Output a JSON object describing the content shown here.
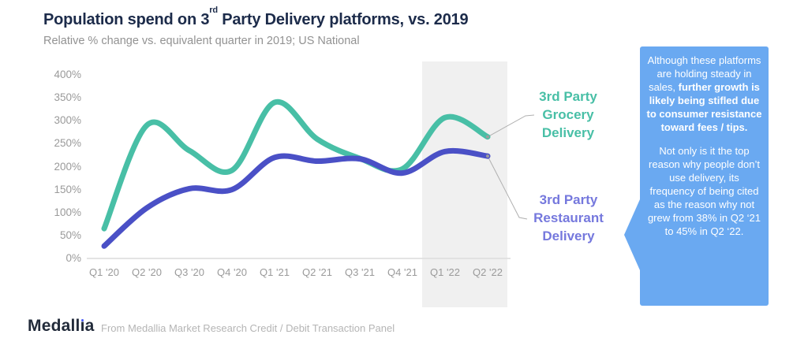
{
  "header": {
    "title_pre": "Population spend on 3",
    "title_sup": "rd",
    "title_post": " Party Delivery platforms, vs. 2019",
    "subtitle": "Relative % change vs. equivalent quarter in 2019; US National"
  },
  "chart_data": {
    "type": "line",
    "categories": [
      "Q1 '20",
      "Q2 '20",
      "Q3 '20",
      "Q4 '20",
      "Q1 '21",
      "Q2 '21",
      "Q3 '21",
      "Q4 '21",
      "Q1 '22",
      "Q2 '22"
    ],
    "series": [
      {
        "name": "3rd Party Grocery Delivery",
        "color": "#48BFA6",
        "values": [
          65,
          290,
          235,
          192,
          340,
          260,
          218,
          195,
          307,
          265
        ]
      },
      {
        "name": "3rd Party Restaurant Delivery",
        "color": "#4A50C6",
        "values": [
          27,
          110,
          152,
          150,
          220,
          212,
          217,
          186,
          233,
          223
        ]
      }
    ],
    "ylabel_ticks": [
      "400%",
      "350%",
      "300%",
      "250%",
      "200%",
      "150%",
      "100%",
      "50%",
      "0%"
    ],
    "ylim": [
      0,
      400
    ],
    "ytick_step": 50,
    "grid": "baseline-only",
    "highlight_quarters": [
      "Q1 '22",
      "Q2 '22"
    ],
    "legend_position": "right-of-line-ends"
  },
  "series_labels": {
    "grocery": {
      "line1": "3rd Party",
      "line2": "Grocery",
      "line3": "Delivery",
      "color": "#48BFA6"
    },
    "restaurant": {
      "line1": "3rd Party",
      "line2": "Restaurant",
      "line3": "Delivery",
      "color": "#7578DD"
    }
  },
  "callout": {
    "bg_color": "#6AA9F1",
    "p1_normal": "Although these platforms are holding steady in sales, ",
    "p1_bold": "further growth is likely being stifled due to consumer resistance toward fees / tips.",
    "p2": "Not only is it the top reason why people don’t use delivery, its frequency of being cited as the reason why not grew from 38% in Q2 ‘21 to 45% in Q2 ‘22."
  },
  "footer": {
    "logo_pre": "Medall",
    "logo_i": "ı",
    "logo_post": "a",
    "source": "From Medallia Market Research Credit / Debit Transaction Panel"
  }
}
